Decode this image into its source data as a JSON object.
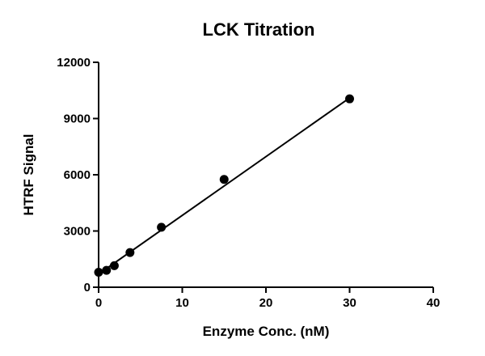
{
  "chart_data": {
    "type": "scatter",
    "title": "LCK Titration",
    "xlabel": "Enzyme Conc. (nM)",
    "ylabel": "HTRF Signal",
    "xlim": [
      0,
      40
    ],
    "ylim": [
      0,
      12000
    ],
    "xticks": [
      0,
      10,
      20,
      30,
      40
    ],
    "yticks": [
      0,
      3000,
      6000,
      9000,
      12000
    ],
    "xtick_labels": [
      "0",
      "10",
      "20",
      "30",
      "40"
    ],
    "ytick_labels": [
      "0",
      "3000",
      "6000",
      "9000",
      "12000"
    ],
    "grid": false,
    "series": [
      {
        "name": "LCK",
        "x": [
          0,
          0.94,
          1.875,
          3.75,
          7.5,
          15,
          30
        ],
        "y": [
          800,
          900,
          1150,
          1850,
          3200,
          5750,
          10050
        ]
      }
    ],
    "fit_line": {
      "x": [
        0,
        30
      ],
      "y": [
        700,
        10100
      ]
    }
  }
}
